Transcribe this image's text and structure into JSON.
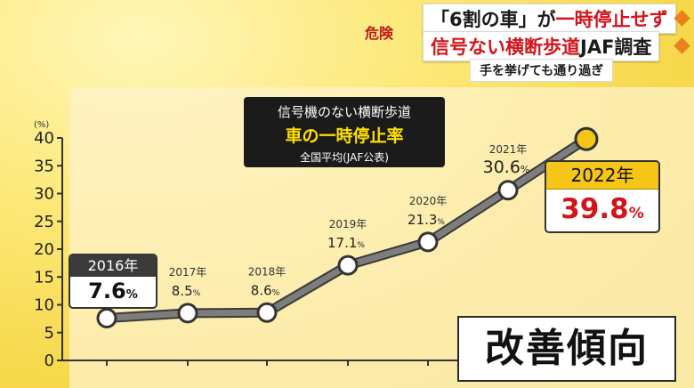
{
  "banner": {
    "label": "危険",
    "headline_1_a": "「6割の車」が",
    "headline_1_b": "一時停止せず",
    "headline_2_a": "信号ない横断歩道",
    "headline_2_b": "JAF調査",
    "sub_headline": "手を挙げても通り過ぎ"
  },
  "title_box": {
    "line1": "信号機のない横断歩道",
    "line2": "車の一時停止率",
    "line3": "全国平均(JAF公表)"
  },
  "callouts": {
    "first": {
      "year": "2016年",
      "value": "7.6",
      "unit": "%"
    },
    "last": {
      "year": "2022年",
      "value": "39.8",
      "unit": "%"
    }
  },
  "trend_label": "改善傾向",
  "colors": {
    "line": "#7d7d7d",
    "marker_last": "#f5c518",
    "accent_red": "#d2141b"
  },
  "chart_data": {
    "type": "line",
    "x": [
      2016,
      2017,
      2018,
      2019,
      2020,
      2021,
      2022
    ],
    "series": [
      {
        "values": [
          7.6,
          8.5,
          8.6,
          17.1,
          21.3,
          30.6,
          39.8
        ]
      }
    ],
    "point_labels": [
      {
        "year": "",
        "value": ""
      },
      {
        "year": "2017年",
        "value": "8.5",
        "unit": "%"
      },
      {
        "year": "2018年",
        "value": "8.6",
        "unit": "%"
      },
      {
        "year": "2019年",
        "value": "17.1",
        "unit": "%"
      },
      {
        "year": "2020年",
        "value": "21.3",
        "unit": "%"
      },
      {
        "year": "2021年",
        "value": "30.6",
        "unit": "%"
      },
      {
        "year": "",
        "value": ""
      }
    ],
    "ylabel": "(%)",
    "ylim": [
      0,
      40
    ],
    "yticks": [
      "0",
      "5",
      "10",
      "15",
      "20",
      "25",
      "30",
      "35",
      "40"
    ]
  }
}
